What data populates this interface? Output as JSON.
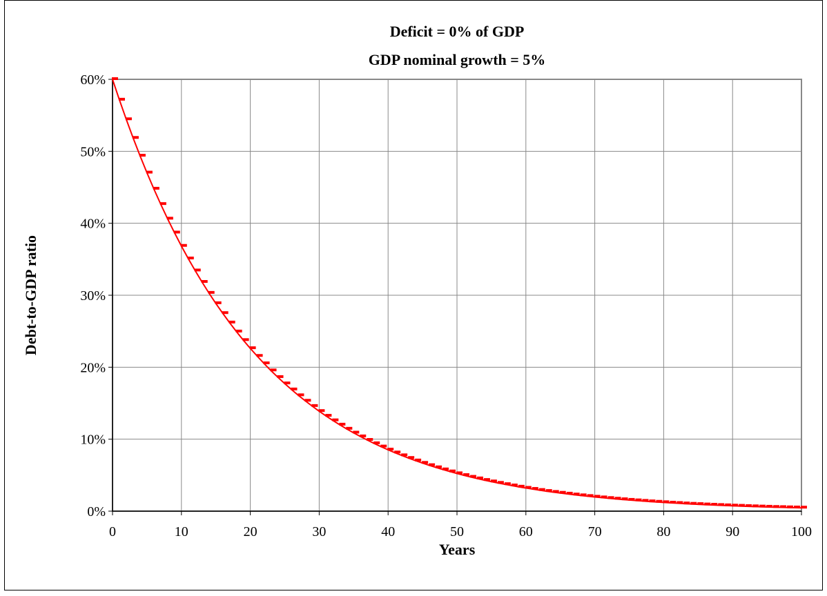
{
  "chart_data": {
    "type": "line",
    "title": "Deficit = 0%  of GDP",
    "subtitle": "GDP nominal growth = 5%",
    "x_label": "Years",
    "y_label": "Debt-to-GDP ratio",
    "x": [
      0,
      1,
      2,
      3,
      4,
      5,
      6,
      7,
      8,
      9,
      10,
      11,
      12,
      13,
      14,
      15,
      16,
      17,
      18,
      19,
      20,
      21,
      22,
      23,
      24,
      25,
      26,
      27,
      28,
      29,
      30,
      31,
      32,
      33,
      34,
      35,
      36,
      37,
      38,
      39,
      40,
      41,
      42,
      43,
      44,
      45,
      46,
      47,
      48,
      49,
      50,
      51,
      52,
      53,
      54,
      55,
      56,
      57,
      58,
      59,
      60,
      61,
      62,
      63,
      64,
      65,
      66,
      67,
      68,
      69,
      70,
      71,
      72,
      73,
      74,
      75,
      76,
      77,
      78,
      79,
      80,
      81,
      82,
      83,
      84,
      85,
      86,
      87,
      88,
      89,
      90,
      91,
      92,
      93,
      94,
      95,
      96,
      97,
      98,
      99,
      100
    ],
    "series": [
      {
        "color": "#ff0000",
        "values": [
          60,
          57.14,
          54.42,
          51.83,
          49.36,
          47.01,
          44.77,
          42.64,
          40.61,
          38.68,
          36.83,
          35.08,
          33.41,
          31.82,
          30.3,
          28.86,
          27.49,
          26.18,
          24.93,
          23.74,
          22.61,
          21.54,
          20.51,
          19.53,
          18.6,
          17.72,
          16.88,
          16.07,
          15.31,
          14.58,
          13.88,
          13.22,
          12.59,
          11.99,
          11.42,
          10.88,
          10.36,
          9.87,
          9.4,
          8.95,
          8.52,
          8.12,
          7.73,
          7.36,
          7.01,
          6.68,
          6.36,
          6.06,
          5.77,
          5.49,
          5.23,
          4.98,
          4.74,
          4.52,
          4.3,
          4.1,
          3.9,
          3.72,
          3.54,
          3.37,
          3.21,
          3.06,
          2.91,
          2.77,
          2.64,
          2.52,
          2.4,
          2.28,
          2.17,
          2.07,
          1.97,
          1.88,
          1.79,
          1.7,
          1.62,
          1.54,
          1.47,
          1.4,
          1.33,
          1.27,
          1.21,
          1.15,
          1.1,
          1.04,
          0.99,
          0.95,
          0.9,
          0.86,
          0.82,
          0.78,
          0.74,
          0.71,
          0.67,
          0.64,
          0.61,
          0.58,
          0.55,
          0.53,
          0.5,
          0.48,
          0.46
        ]
      }
    ],
    "xlim": [
      0,
      100
    ],
    "xticks": [
      0,
      10,
      20,
      30,
      40,
      50,
      60,
      70,
      80,
      90,
      100
    ],
    "ylim": [
      0,
      60
    ],
    "yticks": [
      {
        "value": 0,
        "label": "0%"
      },
      {
        "value": 10,
        "label": "10%"
      },
      {
        "value": 20,
        "label": "20%"
      },
      {
        "value": 30,
        "label": "30%"
      },
      {
        "value": 40,
        "label": "40%"
      },
      {
        "value": 50,
        "label": "50%"
      },
      {
        "value": 60,
        "label": "60%"
      }
    ],
    "grid": true
  }
}
